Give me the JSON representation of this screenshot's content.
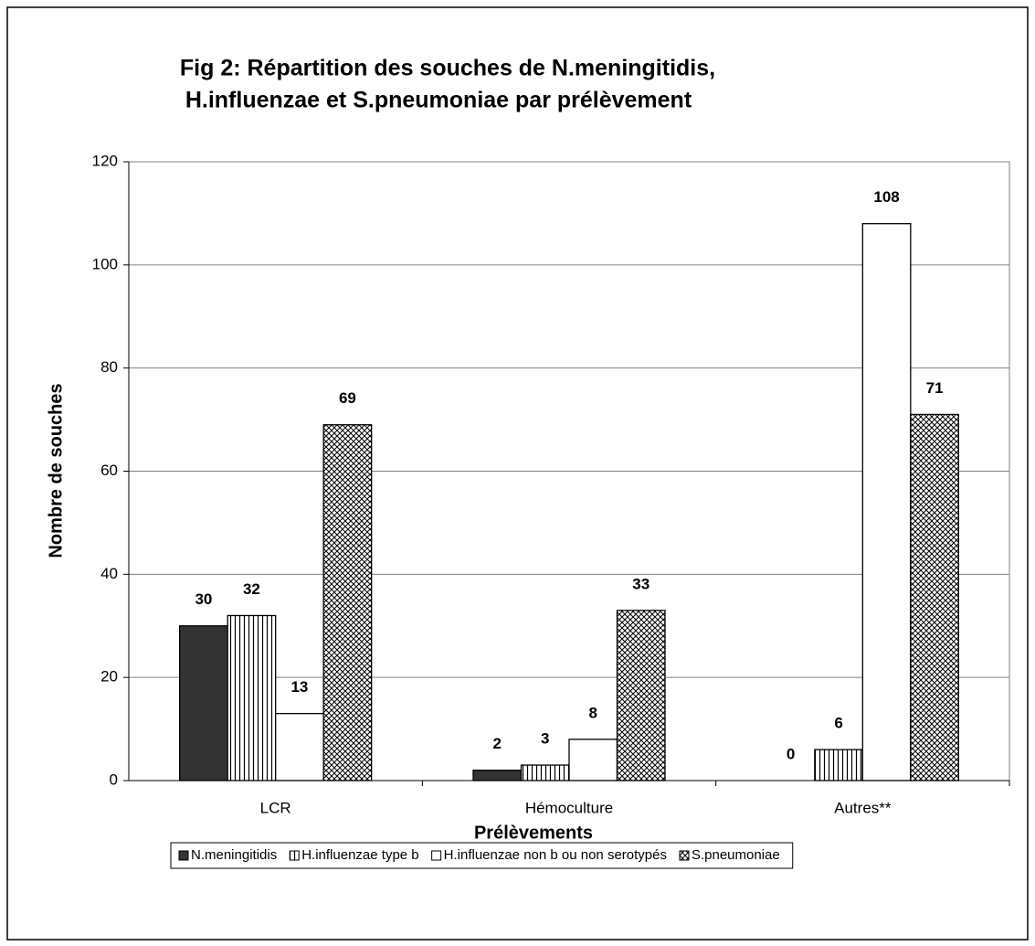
{
  "chart_data": {
    "type": "bar",
    "title": [
      "Fig 2: Répartition des souches de N.meningitidis,",
      "H.influenzae et S.pneumoniae par prélèvement"
    ],
    "x_label": "Prélèvements",
    "y_label": "Nombre de souches",
    "categories": [
      "LCR",
      "Hémoculture",
      "Autres**"
    ],
    "series": [
      {
        "name": "N.meningitidis",
        "color": "#333333",
        "pattern": "solid",
        "values": [
          30,
          2,
          0
        ]
      },
      {
        "name": "H.influenzae type b",
        "color": "#ffffff",
        "pattern": "vertical-lines",
        "values": [
          32,
          3,
          6
        ]
      },
      {
        "name": "H.influenzae non b ou non serotypés",
        "color": "#ffffff",
        "pattern": "none",
        "values": [
          13,
          8,
          108
        ]
      },
      {
        "name": "S.pneumoniae",
        "color": "#ffffff",
        "pattern": "crosshatch",
        "values": [
          69,
          33,
          71
        ]
      }
    ],
    "ylim": [
      0,
      120
    ],
    "yticks": [
      0,
      20,
      40,
      60,
      80,
      100,
      120
    ],
    "grid": true,
    "legend": "bottom"
  }
}
